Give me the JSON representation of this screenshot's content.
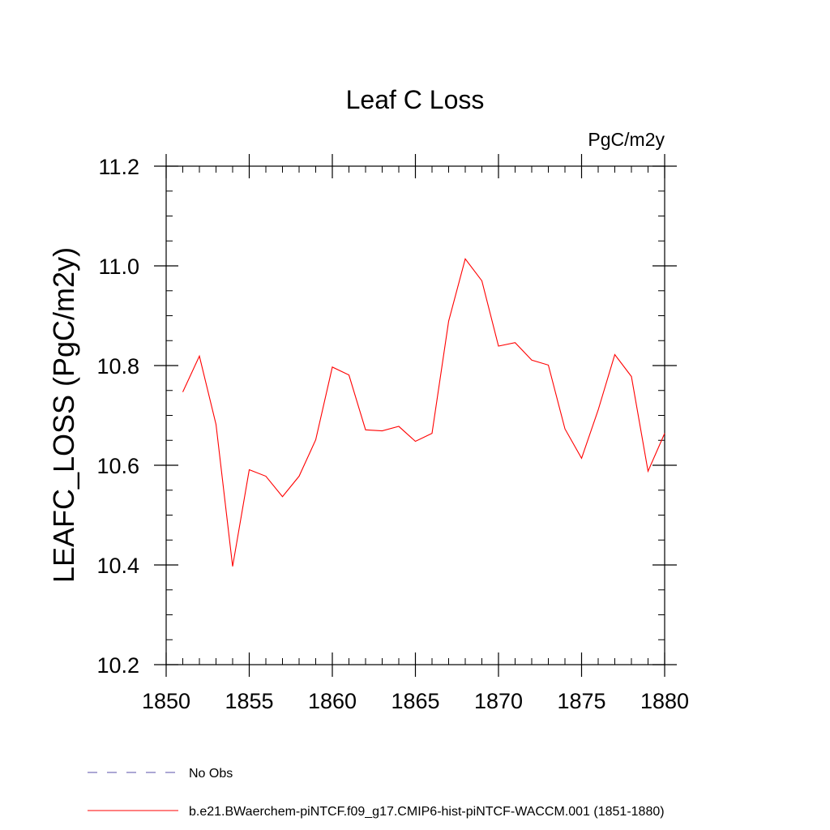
{
  "chart_data": {
    "type": "line",
    "title": "Leaf C Loss",
    "units_label": "PgC/m2y",
    "ylabel": "LEAFC_LOSS  (PgC/m2y)",
    "xlabel": "",
    "xlim": [
      1850,
      1880
    ],
    "ylim": [
      10.2,
      11.2
    ],
    "x_major_ticks": [
      1850,
      1855,
      1860,
      1865,
      1870,
      1875,
      1880
    ],
    "x_tick_labels": [
      "1850",
      "1855",
      "1860",
      "1865",
      "1870",
      "1875",
      "1880"
    ],
    "y_major_ticks": [
      10.2,
      10.4,
      10.6,
      10.8,
      11.0,
      11.2
    ],
    "y_tick_labels": [
      "10.2",
      "10.4",
      "10.6",
      "10.8",
      "11.0",
      "11.2"
    ],
    "grid": false,
    "legend_position": "bottom-left",
    "series": [
      {
        "name": "b.e21.BWaerchem-piNTCF.f09_g17.CMIP6-hist-piNTCF-WACCM.001 (1851-1880)",
        "color": "#ff0000",
        "dash": "solid",
        "x": [
          1851,
          1852,
          1853,
          1854,
          1855,
          1856,
          1857,
          1858,
          1859,
          1860,
          1861,
          1862,
          1863,
          1864,
          1865,
          1866,
          1867,
          1868,
          1869,
          1870,
          1871,
          1872,
          1873,
          1874,
          1875,
          1876,
          1877,
          1878,
          1879,
          1880
        ],
        "y": [
          10.747,
          10.819,
          10.682,
          10.397,
          10.591,
          10.578,
          10.537,
          10.578,
          10.651,
          10.797,
          10.781,
          10.671,
          10.669,
          10.678,
          10.648,
          10.664,
          10.889,
          11.014,
          10.97,
          10.839,
          10.846,
          10.811,
          10.801,
          10.673,
          10.614,
          10.711,
          10.822,
          10.778,
          10.588,
          10.664
        ]
      }
    ],
    "legend": [
      {
        "label": "No Obs",
        "color": "#5a4fa8",
        "dash": "dashed"
      },
      {
        "label": "b.e21.BWaerchem-piNTCF.f09_g17.CMIP6-hist-piNTCF-WACCM.001 (1851-1880)",
        "color": "#ff0000",
        "dash": "solid"
      }
    ]
  }
}
